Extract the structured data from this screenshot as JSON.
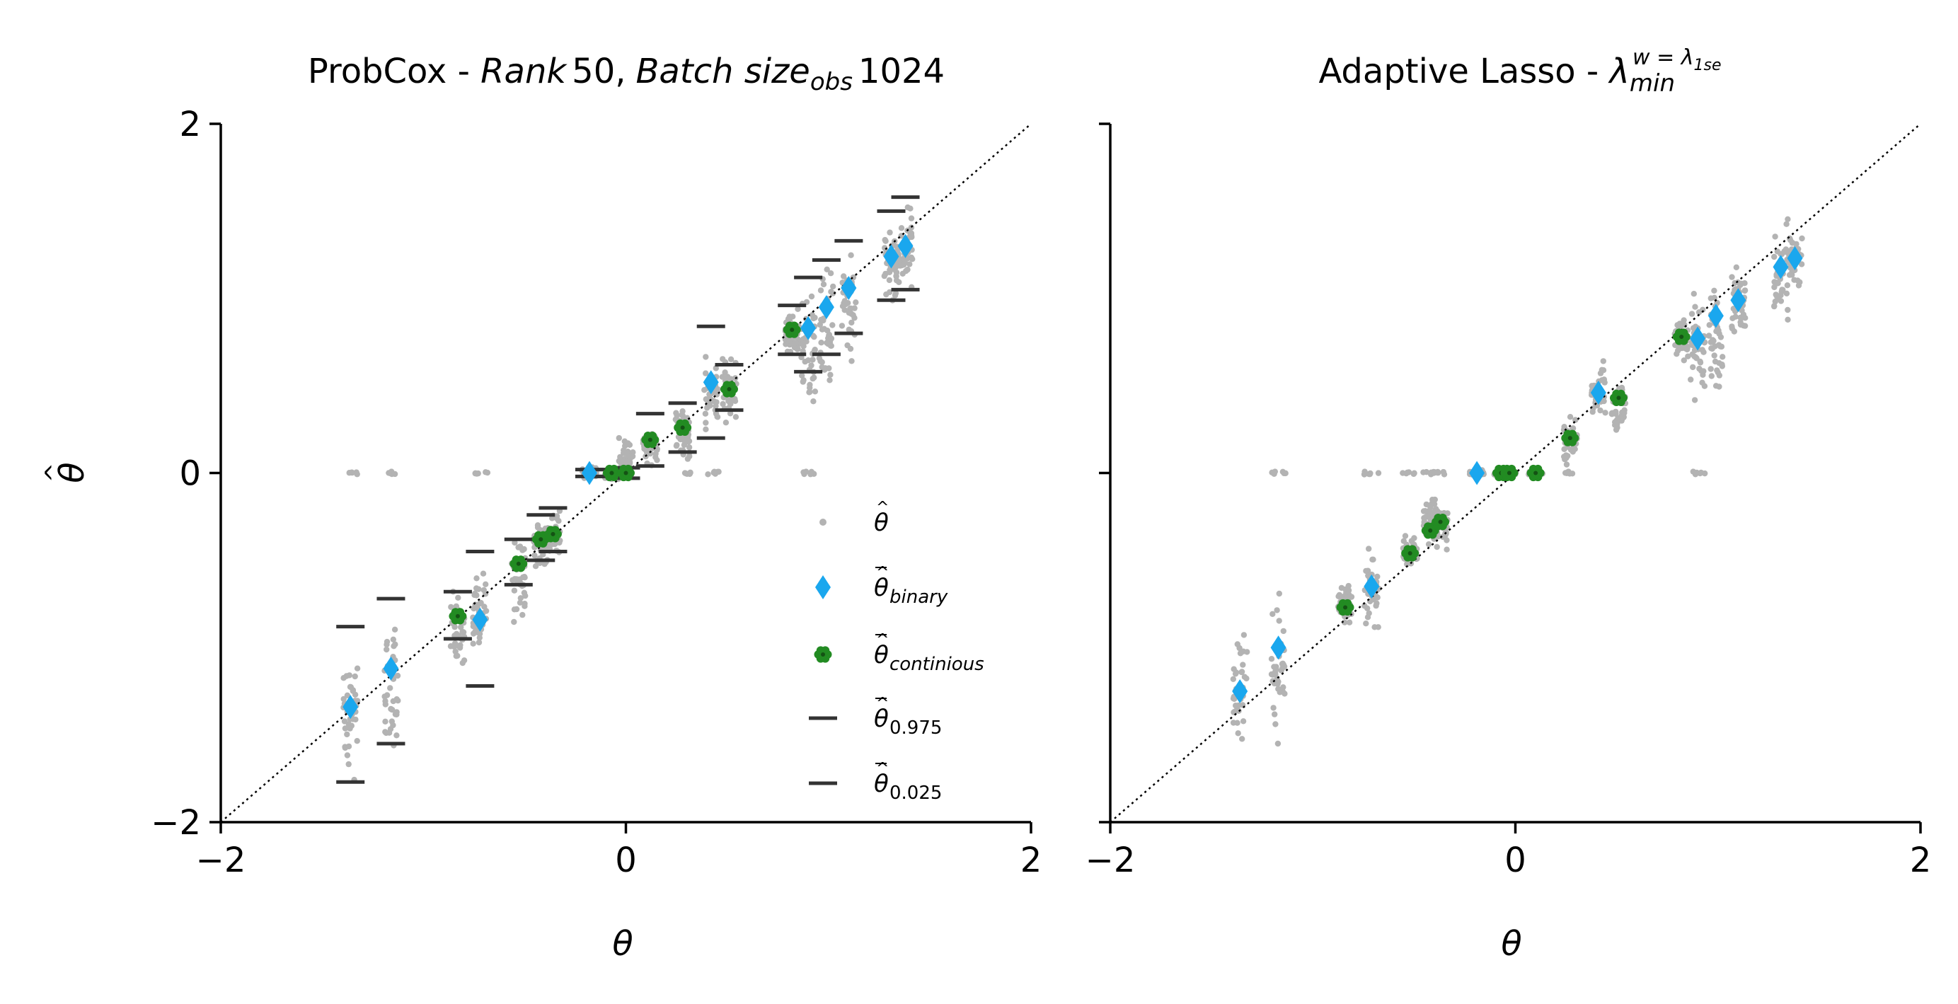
{
  "colors": {
    "raw_points": "#b3b3b3",
    "binary_mean": "#1aa7ee",
    "continuous_mean": "#228b22",
    "quantile_bars": "#333333",
    "axes": "#000000",
    "identity_line": "#000000"
  },
  "legend": {
    "placement": "lower-right (left panel)",
    "entries": [
      {
        "key": "raw",
        "marker": "dot",
        "base": "θ",
        "hat": "hat",
        "sub": ""
      },
      {
        "key": "binary",
        "marker": "diamond",
        "base": "θ",
        "hat": "hat-bar",
        "sub": "binary"
      },
      {
        "key": "continuous",
        "marker": "flower",
        "base": "θ",
        "hat": "hat-bar",
        "sub": "continious"
      },
      {
        "key": "q975",
        "marker": "bar",
        "base": "θ",
        "hat": "hat-bar",
        "sub": "0.975"
      },
      {
        "key": "q025",
        "marker": "bar",
        "base": "θ",
        "hat": "hat-bar",
        "sub": "0.025"
      }
    ]
  },
  "chart_data": [
    {
      "type": "scatter",
      "panel": "left",
      "title": {
        "prefix": "ProbCox - ",
        "rank_label": "Rank",
        "rank_value": "50,",
        "batch_label": "Batch size",
        "batch_sub": "obs",
        "batch_value": "1024"
      },
      "xlabel": "θ",
      "ylabel": "θ",
      "ylabel_accent": "hat",
      "xlim": [
        -2,
        2
      ],
      "ylim": [
        -2,
        2
      ],
      "xticks": [
        -2,
        0,
        2
      ],
      "yticks": [
        -2,
        0,
        2
      ],
      "xtick_labels": [
        "−2",
        "0",
        "2"
      ],
      "ytick_labels": [
        "−2",
        "0",
        "2"
      ],
      "grid": false,
      "identity_line": true,
      "groups": [
        {
          "theta": -1.36,
          "kind": "binary",
          "mean": -1.34,
          "q975": -0.88,
          "q025": -1.77,
          "spread": [
            -1.88,
            -0.9
          ],
          "zeros": true
        },
        {
          "theta": -1.16,
          "kind": "binary",
          "mean": -1.12,
          "q975": -0.72,
          "q025": -1.55,
          "spread": [
            -1.66,
            -0.8
          ],
          "zeros": true
        },
        {
          "theta": -0.83,
          "kind": "continuous",
          "mean": -0.82,
          "q975": -0.68,
          "q025": -0.95,
          "spread": [
            -1.22,
            -0.62
          ],
          "zeros": false
        },
        {
          "theta": -0.72,
          "kind": "binary",
          "mean": -0.84,
          "q975": -0.45,
          "q025": -1.22,
          "spread": [
            -1.12,
            -0.5
          ],
          "zeros": true
        },
        {
          "theta": -0.53,
          "kind": "continuous",
          "mean": -0.52,
          "q975": -0.38,
          "q025": -0.64,
          "spread": [
            -0.92,
            -0.28
          ],
          "zeros": false
        },
        {
          "theta": -0.42,
          "kind": "continuous",
          "mean": -0.38,
          "q975": -0.24,
          "q025": -0.5,
          "spread": [
            -0.6,
            -0.22
          ],
          "zeros": false
        },
        {
          "theta": -0.36,
          "kind": "continuous",
          "mean": -0.35,
          "q975": -0.2,
          "q025": -0.45,
          "spread": [
            -0.55,
            -0.18
          ],
          "zeros": false
        },
        {
          "theta": -0.18,
          "kind": "binary",
          "mean": 0.0,
          "q975": 0.02,
          "q025": -0.02,
          "spread": [
            -0.04,
            0.04
          ],
          "zeros": false
        },
        {
          "theta": -0.07,
          "kind": "continuous",
          "mean": 0.0,
          "q975": 0.02,
          "q025": -0.02,
          "spread": [
            -0.05,
            0.03
          ],
          "zeros": false
        },
        {
          "theta": 0.0,
          "kind": "continuous",
          "mean": 0.0,
          "q975": 0.03,
          "q025": -0.03,
          "spread": [
            -0.07,
            0.24
          ],
          "zeros": false
        },
        {
          "theta": 0.12,
          "kind": "continuous",
          "mean": 0.19,
          "q975": 0.34,
          "q025": 0.04,
          "spread": [
            0.0,
            0.28
          ],
          "zeros": false
        },
        {
          "theta": 0.28,
          "kind": "continuous",
          "mean": 0.26,
          "q975": 0.4,
          "q025": 0.12,
          "spread": [
            0.0,
            0.44
          ],
          "zeros": true
        },
        {
          "theta": 0.42,
          "kind": "binary",
          "mean": 0.52,
          "q975": 0.84,
          "q025": 0.2,
          "spread": [
            0.1,
            0.75
          ],
          "zeros": true
        },
        {
          "theta": 0.51,
          "kind": "continuous",
          "mean": 0.48,
          "q975": 0.62,
          "q025": 0.36,
          "spread": [
            0.2,
            0.72
          ],
          "zeros": false
        },
        {
          "theta": 0.82,
          "kind": "continuous",
          "mean": 0.82,
          "q975": 0.96,
          "q025": 0.68,
          "spread": [
            0.6,
            1.0
          ],
          "zeros": false
        },
        {
          "theta": 0.9,
          "kind": "binary",
          "mean": 0.83,
          "q975": 1.12,
          "q025": 0.58,
          "spread": [
            0.28,
            1.2
          ],
          "zeros": true
        },
        {
          "theta": 0.99,
          "kind": "binary",
          "mean": 0.95,
          "q975": 1.22,
          "q025": 0.68,
          "spread": [
            0.35,
            1.3
          ],
          "zeros": false
        },
        {
          "theta": 1.1,
          "kind": "binary",
          "mean": 1.06,
          "q975": 1.33,
          "q025": 0.8,
          "spread": [
            0.56,
            1.35
          ],
          "zeros": false
        },
        {
          "theta": 1.31,
          "kind": "binary",
          "mean": 1.24,
          "q975": 1.5,
          "q025": 0.99,
          "spread": [
            0.9,
            1.55
          ],
          "zeros": false
        },
        {
          "theta": 1.38,
          "kind": "binary",
          "mean": 1.3,
          "q975": 1.58,
          "q025": 1.05,
          "spread": [
            0.95,
            1.6
          ],
          "zeros": false
        }
      ]
    },
    {
      "type": "scatter",
      "panel": "right",
      "title": {
        "prefix": "Adaptive Lasso - ",
        "lambda": "λ",
        "lambda_sub": "min",
        "lambda_sup": "w = λ",
        "lambda_sup_sub": "1se"
      },
      "xlabel": "θ",
      "xlim": [
        -2,
        2
      ],
      "ylim": [
        -2,
        2
      ],
      "xticks": [
        -2,
        0,
        2
      ],
      "xtick_labels": [
        "−2",
        "0",
        "2"
      ],
      "grid": false,
      "identity_line": true,
      "groups": [
        {
          "theta": -1.36,
          "kind": "binary",
          "mean": -1.25,
          "spread": [
            -1.78,
            -0.72
          ],
          "zeros": false
        },
        {
          "theta": -1.17,
          "kind": "binary",
          "mean": -1.0,
          "spread": [
            -1.65,
            -0.45
          ],
          "zeros": true
        },
        {
          "theta": -0.84,
          "kind": "continuous",
          "mean": -0.77,
          "spread": [
            -0.9,
            -0.6
          ],
          "zeros": false
        },
        {
          "theta": -0.71,
          "kind": "binary",
          "mean": -0.65,
          "spread": [
            -1.02,
            -0.38
          ],
          "zeros": true
        },
        {
          "theta": -0.52,
          "kind": "continuous",
          "mean": -0.46,
          "spread": [
            -0.6,
            -0.3
          ],
          "zeros": true
        },
        {
          "theta": -0.42,
          "kind": "continuous",
          "mean": -0.33,
          "spread": [
            -0.45,
            -0.12
          ],
          "zeros": true
        },
        {
          "theta": -0.37,
          "kind": "continuous",
          "mean": -0.28,
          "spread": [
            -0.5,
            -0.1
          ],
          "zeros": true
        },
        {
          "theta": -0.19,
          "kind": "binary",
          "mean": 0.0,
          "spread": [
            -0.02,
            0.02
          ],
          "zeros": false
        },
        {
          "theta": -0.07,
          "kind": "continuous",
          "mean": 0.0,
          "spread": [
            -0.02,
            0.02
          ],
          "zeros": false
        },
        {
          "theta": -0.03,
          "kind": "continuous",
          "mean": 0.0,
          "spread": [
            -0.02,
            0.02
          ],
          "zeros": false
        },
        {
          "theta": 0.1,
          "kind": "continuous",
          "mean": 0.0,
          "spread": [
            -0.02,
            0.02
          ],
          "zeros": false
        },
        {
          "theta": 0.27,
          "kind": "continuous",
          "mean": 0.2,
          "spread": [
            0.0,
            0.38
          ],
          "zeros": true
        },
        {
          "theta": 0.41,
          "kind": "binary",
          "mean": 0.46,
          "spread": [
            0.28,
            0.66
          ],
          "zeros": false
        },
        {
          "theta": 0.51,
          "kind": "continuous",
          "mean": 0.43,
          "spread": [
            0.18,
            0.58
          ],
          "zeros": false
        },
        {
          "theta": 0.82,
          "kind": "continuous",
          "mean": 0.78,
          "spread": [
            0.6,
            0.95
          ],
          "zeros": false
        },
        {
          "theta": 0.9,
          "kind": "binary",
          "mean": 0.77,
          "spread": [
            0.35,
            1.1
          ],
          "zeros": true
        },
        {
          "theta": 0.99,
          "kind": "binary",
          "mean": 0.9,
          "spread": [
            0.25,
            1.18
          ],
          "zeros": false
        },
        {
          "theta": 1.1,
          "kind": "binary",
          "mean": 0.99,
          "spread": [
            0.65,
            1.25
          ],
          "zeros": false
        },
        {
          "theta": 1.31,
          "kind": "binary",
          "mean": 1.18,
          "spread": [
            0.78,
            1.52
          ],
          "zeros": false
        },
        {
          "theta": 1.38,
          "kind": "binary",
          "mean": 1.23,
          "spread": [
            0.95,
            1.45
          ],
          "zeros": false
        }
      ]
    }
  ]
}
